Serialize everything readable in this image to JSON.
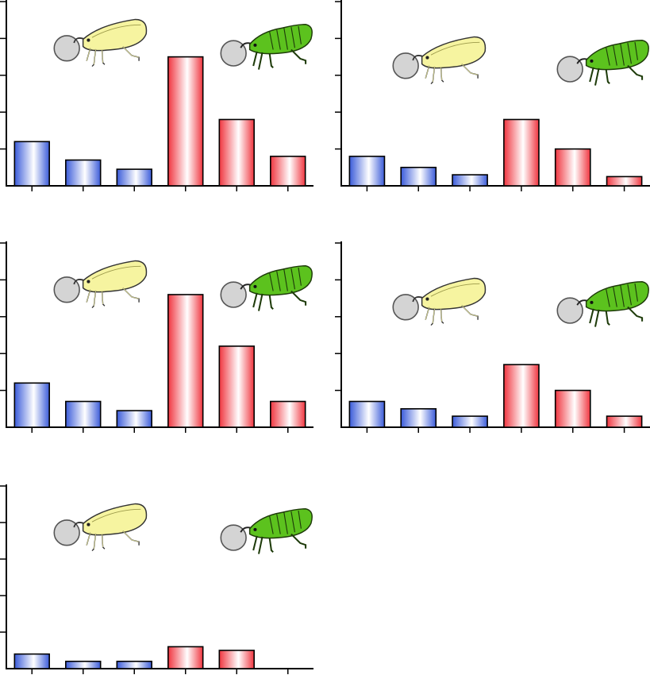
{
  "colors": {
    "blue_edge": "#3a5bd9",
    "blue_center": "#ffffff",
    "red_edge": "#f0353f",
    "red_center": "#ffffff",
    "yellow_insect": "#f6f4a0",
    "green_insect": "#5cc21e",
    "droplet": "#d4d4d4"
  },
  "icons": {
    "left": "yellow-leafhopper-icon",
    "right": "green-leafhopper-icon"
  },
  "chart_data": [
    {
      "type": "bar",
      "ylim": [
        0,
        5
      ],
      "yticks": [
        0,
        1,
        2,
        3,
        4,
        5
      ],
      "grid": false,
      "categories": [
        "",
        "",
        "",
        "",
        "",
        ""
      ],
      "values": [
        1.2,
        0.7,
        0.45,
        3.5,
        1.8,
        0.8
      ],
      "colors": [
        "blue",
        "blue",
        "blue",
        "red",
        "red",
        "red"
      ]
    },
    {
      "type": "bar",
      "ylim": [
        0,
        5
      ],
      "yticks": [
        0,
        1,
        2,
        3,
        4,
        5
      ],
      "grid": false,
      "categories": [
        "",
        "",
        "",
        "",
        "",
        ""
      ],
      "values": [
        0.8,
        0.5,
        0.3,
        1.8,
        1.0,
        0.25
      ],
      "colors": [
        "blue",
        "blue",
        "blue",
        "red",
        "red",
        "red"
      ]
    },
    {
      "type": "bar",
      "ylim": [
        0,
        5
      ],
      "yticks": [
        0,
        1,
        2,
        3,
        4,
        5
      ],
      "grid": false,
      "categories": [
        "",
        "",
        "",
        "",
        "",
        ""
      ],
      "values": [
        1.2,
        0.7,
        0.45,
        3.6,
        2.2,
        0.7
      ],
      "colors": [
        "blue",
        "blue",
        "blue",
        "red",
        "red",
        "red"
      ]
    },
    {
      "type": "bar",
      "ylim": [
        0,
        5
      ],
      "yticks": [
        0,
        1,
        2,
        3,
        4,
        5
      ],
      "grid": false,
      "categories": [
        "",
        "",
        "",
        "",
        "",
        ""
      ],
      "values": [
        0.7,
        0.5,
        0.3,
        1.7,
        1.0,
        0.3
      ],
      "colors": [
        "blue",
        "blue",
        "blue",
        "red",
        "red",
        "red"
      ]
    },
    {
      "type": "bar",
      "ylim": [
        0,
        5
      ],
      "yticks": [
        0,
        1,
        2,
        3,
        4,
        5
      ],
      "grid": false,
      "categories": [
        "",
        "",
        "",
        "",
        "",
        ""
      ],
      "values": [
        0.4,
        0.2,
        0.2,
        0.6,
        0.5,
        0
      ],
      "colors": [
        "blue",
        "blue",
        "blue",
        "red",
        "red",
        "red"
      ]
    }
  ]
}
